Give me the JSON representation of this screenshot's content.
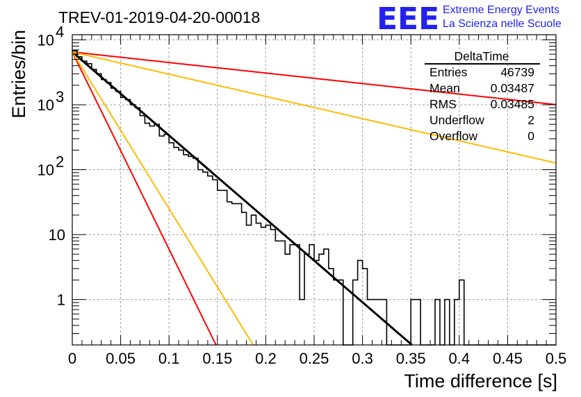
{
  "title": "TREV-01-2019-04-20-00018",
  "logo": {
    "mark": "EEE",
    "line1": "Extreme Energy Events",
    "line2": "La Scienza nelle Scuole"
  },
  "chart_data": {
    "type": "histogram",
    "xlabel": "Time difference [s]",
    "ylabel": "Entries/bin",
    "xlim": [
      0,
      0.5
    ],
    "ylim": [
      0.2,
      12000
    ],
    "yscale": "log",
    "grid": true,
    "x_ticks": [
      "0",
      "0.05",
      "0.1",
      "0.15",
      "0.2",
      "0.25",
      "0.3",
      "0.35",
      "0.4",
      "0.45",
      "0.5"
    ],
    "y_major_ticks": [
      {
        "value": 1,
        "label": "1"
      },
      {
        "value": 10,
        "label": "10"
      },
      {
        "value": 100,
        "label": "10",
        "exp": "2"
      },
      {
        "value": 1000,
        "label": "10",
        "exp": "3"
      },
      {
        "value": 10000,
        "label": "10",
        "exp": "4"
      }
    ],
    "stats_box": {
      "name": "DeltaTime",
      "rows": [
        {
          "label": "Entries",
          "value": "46739"
        },
        {
          "label": "Mean",
          "value": "0.03487"
        },
        {
          "label": "RMS",
          "value": "0.03485"
        },
        {
          "label": "Underflow",
          "value": "2"
        },
        {
          "label": "Overflow",
          "value": "0"
        }
      ]
    },
    "histogram": {
      "bin_width": 0.005,
      "x_start": 0,
      "counts": [
        6700,
        5600,
        4800,
        4100,
        3450,
        2950,
        2550,
        2150,
        1850,
        1560,
        1340,
        1150,
        960,
        840,
        700,
        590,
        510,
        445,
        380,
        320,
        275,
        235,
        200,
        170,
        146,
        125,
        106,
        90,
        77,
        66,
        56,
        48,
        41,
        35,
        30,
        25,
        21.5,
        18.5,
        16,
        13.5,
        11.5,
        10,
        8.5,
        7.3,
        6.2,
        5.3,
        4.6,
        3.9,
        3.4,
        2.9,
        2.5,
        2.1,
        1.9,
        1.6,
        1.4,
        1.2,
        1.0,
        0.95,
        0.8,
        0.7,
        0.6,
        0.52,
        0.45,
        0.38,
        0.33,
        0.28,
        0.24,
        0.21,
        0.18,
        0.16,
        0.14,
        0.12
      ]
    },
    "histogram_observed": [
      6800,
      5500,
      4700,
      4300,
      3500,
      3000,
      2450,
      2200,
      1800,
      1600,
      1300,
      1200,
      1000,
      900,
      680,
      520,
      470,
      500,
      330,
      350,
      260,
      220,
      200,
      170,
      160,
      150,
      100,
      92,
      80,
      70,
      48,
      48,
      32,
      30,
      30,
      22,
      14,
      20,
      15,
      13,
      14,
      12,
      8,
      8,
      5,
      7,
      7,
      1,
      5,
      7,
      4,
      5,
      6,
      3,
      2,
      2,
      0,
      0,
      2,
      4,
      3,
      1,
      1,
      1,
      1,
      0,
      0,
      0,
      0,
      0,
      1,
      1,
      0,
      0,
      0,
      1,
      0,
      1,
      0,
      1,
      2,
      0,
      0,
      0,
      0,
      0,
      0,
      0,
      0,
      0,
      0,
      0,
      0,
      0,
      0,
      0,
      0,
      0,
      0,
      0
    ],
    "series": [
      {
        "color": "#000000",
        "a": 6500,
        "tau": 0.0338,
        "kind": "fit"
      },
      {
        "color": "#ff0000",
        "a": 6500,
        "tau": 0.0143,
        "kind": "limit"
      },
      {
        "color": "#ffbb00",
        "a": 6500,
        "tau": 0.018,
        "kind": "limit"
      },
      {
        "color": "#ff0000",
        "a": 6500,
        "tau": 0.268,
        "kind": "limit"
      },
      {
        "color": "#ffbb00",
        "a": 6500,
        "tau": 0.127,
        "kind": "limit"
      }
    ]
  }
}
